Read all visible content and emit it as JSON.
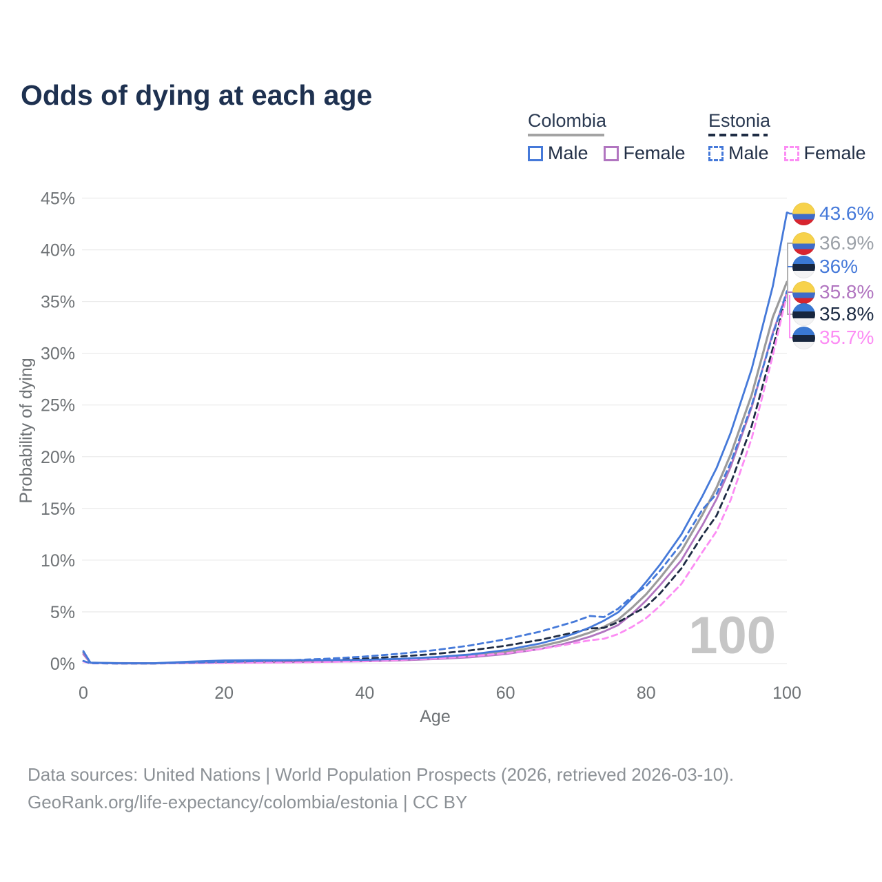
{
  "title": "Odds of dying at each age",
  "watermark_age": "100",
  "legend": {
    "groups": [
      {
        "country": "Colombia",
        "line_style": "solid",
        "underline_color": "#a3a3a3",
        "items": [
          {
            "label": "Male",
            "color": "#4579d9",
            "dashed": false
          },
          {
            "label": "Female",
            "color": "#b175c0",
            "dashed": false
          }
        ]
      },
      {
        "country": "Estonia",
        "line_style": "dashed",
        "underline_color": "#1e2c44",
        "items": [
          {
            "label": "Male",
            "color": "#4579d9",
            "dashed": true
          },
          {
            "label": "Female",
            "color": "#fc8df4",
            "dashed": true
          }
        ]
      }
    ]
  },
  "footer": {
    "line1": "Data sources: United Nations | World Population Prospects (2026, retrieved 2026-03-10).",
    "line2": "GeoRank.org/life-expectancy/colombia/estonia | CC BY"
  },
  "chart_data": {
    "type": "line",
    "title": "Odds of dying at each age",
    "xlabel": "Age",
    "ylabel": "Probability of dying",
    "xlim": [
      0,
      100
    ],
    "ylim": [
      0,
      45
    ],
    "x_ticks": [
      0,
      20,
      40,
      60,
      80,
      100
    ],
    "y_ticks": [
      "0%",
      "5%",
      "10%",
      "15%",
      "20%",
      "25%",
      "30%",
      "35%",
      "40%",
      "45%"
    ],
    "grid": "horizontal",
    "legend_position": "top-right",
    "gridline_color": "#ebebeb",
    "ages": [
      0,
      1,
      5,
      10,
      15,
      20,
      25,
      30,
      35,
      40,
      45,
      50,
      55,
      60,
      65,
      68,
      70,
      72,
      74,
      76,
      78,
      80,
      82,
      85,
      88,
      90,
      92,
      95,
      98,
      100
    ],
    "series": [
      {
        "id": "colombia-all",
        "name": "Colombia (all)",
        "color": "#9b9b9b",
        "dash": null,
        "width": 3.2,
        "values": [
          1.05,
          0.08,
          0.03,
          0.02,
          0.12,
          0.2,
          0.22,
          0.23,
          0.25,
          0.29,
          0.38,
          0.52,
          0.74,
          1.1,
          1.68,
          2.15,
          2.55,
          3.0,
          3.55,
          4.25,
          5.4,
          6.7,
          8.3,
          10.9,
          14.4,
          17.0,
          20.2,
          26.0,
          33.5,
          36.9
        ],
        "end_value": 36.9
      },
      {
        "id": "colombia-female",
        "name": "Colombia Female",
        "color": "#b175c0",
        "dash": null,
        "width": 2.8,
        "values": [
          0.9,
          0.07,
          0.02,
          0.02,
          0.06,
          0.09,
          0.11,
          0.13,
          0.17,
          0.22,
          0.31,
          0.43,
          0.61,
          0.92,
          1.42,
          1.85,
          2.2,
          2.6,
          3.1,
          3.72,
          4.8,
          6.1,
          7.6,
          10.0,
          13.4,
          15.9,
          19.0,
          24.8,
          32.0,
          35.8
        ],
        "end_value": 35.8
      },
      {
        "id": "estonia-all",
        "name": "Estonia (all)",
        "color": "#1e2c44",
        "dash": "8 6",
        "width": 2.8,
        "values": [
          0.22,
          0.03,
          0.01,
          0.01,
          0.06,
          0.11,
          0.17,
          0.24,
          0.34,
          0.48,
          0.68,
          0.93,
          1.27,
          1.72,
          2.3,
          2.75,
          3.05,
          3.4,
          3.45,
          4.0,
          4.75,
          5.5,
          6.8,
          9.2,
          12.4,
          14.3,
          17.4,
          23.0,
          30.5,
          35.8
        ],
        "end_value": 35.8
      },
      {
        "id": "estonia-female",
        "name": "Estonia Female",
        "color": "#fc8df4",
        "dash": "8 6",
        "width": 2.8,
        "values": [
          0.2,
          0.02,
          0.01,
          0.01,
          0.03,
          0.05,
          0.08,
          0.11,
          0.16,
          0.24,
          0.35,
          0.5,
          0.7,
          1.0,
          1.4,
          1.75,
          2.0,
          2.25,
          2.4,
          2.85,
          3.55,
          4.4,
          5.6,
          7.7,
          10.8,
          12.8,
          15.8,
          21.8,
          29.8,
          35.7
        ],
        "end_value": 35.7
      },
      {
        "id": "estonia-male",
        "name": "Estonia Male",
        "color": "#4579d9",
        "dash": "8 6",
        "width": 2.8,
        "values": [
          0.25,
          0.03,
          0.01,
          0.01,
          0.08,
          0.15,
          0.24,
          0.34,
          0.48,
          0.68,
          0.95,
          1.3,
          1.75,
          2.35,
          3.1,
          3.7,
          4.1,
          4.6,
          4.5,
          5.3,
          6.5,
          7.5,
          9.0,
          11.6,
          14.9,
          16.4,
          19.4,
          25.0,
          31.8,
          36.0
        ],
        "end_value": 36.0
      },
      {
        "id": "colombia-male",
        "name": "Colombia Male",
        "color": "#4579d9",
        "dash": null,
        "width": 2.8,
        "values": [
          1.2,
          0.09,
          0.03,
          0.03,
          0.18,
          0.3,
          0.33,
          0.33,
          0.33,
          0.36,
          0.45,
          0.62,
          0.88,
          1.3,
          1.95,
          2.5,
          2.95,
          3.5,
          4.15,
          4.95,
          6.3,
          7.9,
          9.6,
          12.5,
          16.2,
          18.9,
          22.3,
          28.5,
          36.5,
          43.6
        ],
        "end_value": 43.6
      }
    ],
    "end_labels": [
      {
        "text": "43.6%",
        "color": "#4579d9",
        "flag": "colombia",
        "value": 43.6
      },
      {
        "text": "36.9%",
        "color": "#9ca1a8",
        "flag": "colombia",
        "value": 36.9
      },
      {
        "text": "36%",
        "color": "#4579d9",
        "flag": "estonia",
        "value": 36.0
      },
      {
        "text": "35.8%",
        "color": "#b175c0",
        "flag": "colombia",
        "value": 35.8
      },
      {
        "text": "35.8%",
        "color": "#1e2c44",
        "flag": "estonia",
        "value": 35.8
      },
      {
        "text": "35.7%",
        "color": "#fc8df4",
        "flag": "estonia",
        "value": 35.7
      }
    ]
  }
}
